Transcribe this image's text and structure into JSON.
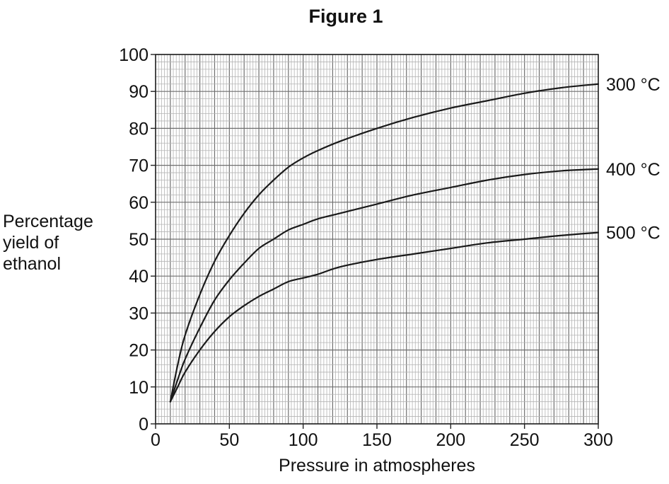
{
  "chart_data": {
    "type": "line",
    "title": "Figure 1",
    "xlabel": "Pressure in atmospheres",
    "ylabel": [
      "Percentage",
      "yield of",
      "ethanol"
    ],
    "xlim": [
      0,
      300
    ],
    "ylim": [
      0,
      100
    ],
    "xticks": [
      0,
      50,
      100,
      150,
      200,
      250,
      300
    ],
    "yticks": [
      0,
      10,
      20,
      30,
      40,
      50,
      60,
      70,
      80,
      90,
      100
    ],
    "grid": true,
    "series": [
      {
        "name": "300 °C",
        "x": [
          10,
          15,
          20,
          30,
          40,
          50,
          60,
          70,
          80,
          90,
          100,
          110,
          125,
          150,
          175,
          200,
          225,
          250,
          275,
          300
        ],
        "y": [
          6,
          16,
          24,
          35,
          44,
          51,
          57,
          62,
          66,
          69.5,
          72,
          74,
          76.5,
          80,
          83,
          85.5,
          87.5,
          89.5,
          91,
          92
        ]
      },
      {
        "name": "400 °C",
        "x": [
          10,
          15,
          20,
          30,
          40,
          50,
          60,
          70,
          80,
          90,
          100,
          110,
          125,
          150,
          175,
          200,
          225,
          250,
          275,
          300
        ],
        "y": [
          6,
          12,
          17.5,
          26,
          33.5,
          39,
          43.5,
          47.5,
          50,
          52.5,
          54,
          55.5,
          57,
          59.5,
          62,
          64,
          66,
          67.5,
          68.5,
          69
        ]
      },
      {
        "name": "500 °C",
        "x": [
          10,
          15,
          20,
          30,
          40,
          50,
          60,
          70,
          80,
          90,
          100,
          110,
          125,
          150,
          175,
          200,
          225,
          250,
          275,
          300
        ],
        "y": [
          6,
          10,
          14,
          20,
          25,
          29,
          32,
          34.5,
          36.5,
          38.5,
          39.5,
          40.5,
          42.5,
          44.5,
          46,
          47.5,
          49,
          50,
          51,
          51.8
        ]
      }
    ]
  }
}
